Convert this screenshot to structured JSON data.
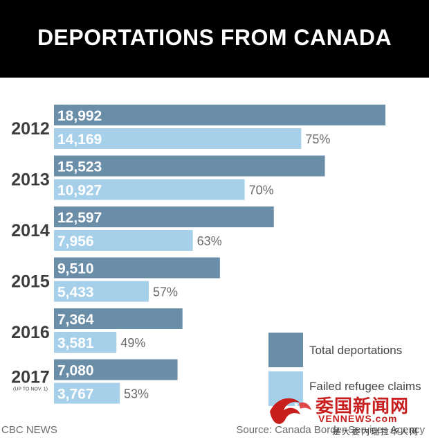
{
  "header": {
    "title": "DEPORTATIONS FROM CANADA"
  },
  "footer": {
    "source_left": "CBC NEWS",
    "source_right": "Source: Canada Border Services Agency"
  },
  "watermark": {
    "name_cn": "委国新闻网",
    "url": "VENNEWS.com",
    "tagline_cn": "是大委内瑞拉华人网"
  },
  "colors": {
    "total": "#6b8ea8",
    "failed": "#a6d0ea",
    "year": "#3d3d3d",
    "pct": "#6a6a6a",
    "header_bg": "#000000"
  },
  "chart_data": {
    "type": "bar",
    "orientation": "horizontal",
    "title": "DEPORTATIONS FROM CANADA",
    "categories": [
      "2012",
      "2013",
      "2014",
      "2015",
      "2016",
      "2017"
    ],
    "category_notes": [
      "",
      "",
      "",
      "",
      "",
      "(UP TO NOV. 1)"
    ],
    "series": [
      {
        "name": "Total deportations",
        "values": [
          18992,
          15523,
          12597,
          9510,
          7364,
          7080
        ],
        "labels": [
          "18,992",
          "15,523",
          "12,597",
          "9,510",
          "7,364",
          "7,080"
        ]
      },
      {
        "name": "Failed refugee claims",
        "values": [
          14169,
          10927,
          7956,
          5433,
          3581,
          3767
        ],
        "labels": [
          "14,169",
          "10,927",
          "7,956",
          "5,433",
          "3,581",
          "3,767"
        ],
        "percent_of_total": [
          "75%",
          "70%",
          "63%",
          "57%",
          "49%",
          "53%"
        ]
      }
    ],
    "legend": {
      "position": "bottom-right",
      "entries": [
        "Total deportations",
        "Failed refugee claims"
      ]
    },
    "grid": false
  }
}
